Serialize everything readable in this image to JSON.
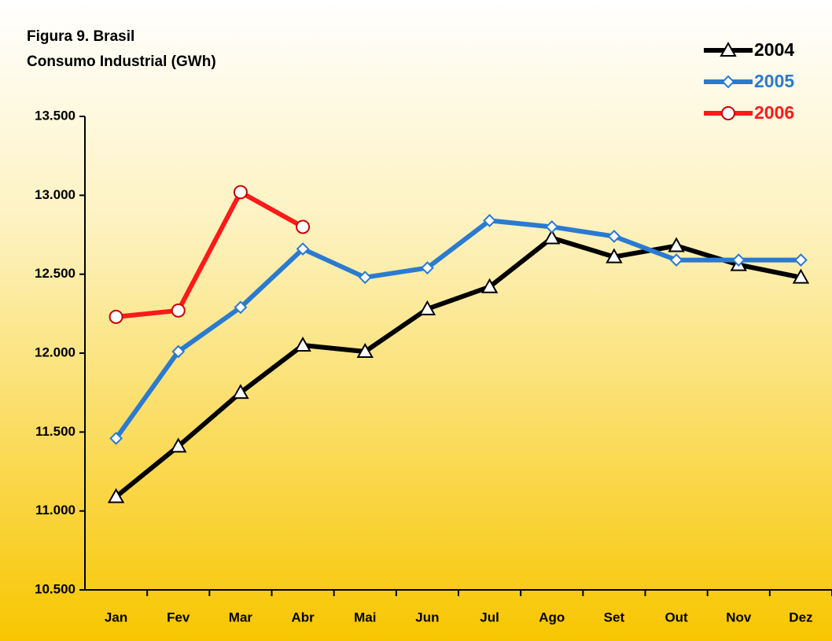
{
  "chart_data": {
    "type": "line",
    "title": "Figura 9. Brasil",
    "subtitle": "Consumo Industrial (GWh)",
    "categories": [
      "Jan",
      "Fev",
      "Mar",
      "Abr",
      "Mai",
      "Jun",
      "Jul",
      "Ago",
      "Set",
      "Out",
      "Nov",
      "Dez"
    ],
    "series": [
      {
        "name": "2004",
        "color": "#000000",
        "marker": "triangle",
        "values": [
          11090,
          11410,
          11750,
          12050,
          12010,
          12280,
          12420,
          12730,
          12610,
          12680,
          12560,
          12480
        ]
      },
      {
        "name": "2005",
        "color": "#2a7ad0",
        "marker": "diamond",
        "values": [
          11460,
          12010,
          12290,
          12660,
          12480,
          12540,
          12840,
          12800,
          12740,
          12590,
          12590,
          12590
        ]
      },
      {
        "name": "2006",
        "color": "#ff1a1a",
        "marker": "circle",
        "values": [
          12230,
          12270,
          13020,
          12800,
          null,
          null,
          null,
          null,
          null,
          null,
          null,
          null
        ]
      }
    ],
    "ylim": [
      10500,
      13500
    ],
    "yticks": [
      {
        "value": 10500,
        "label": "10.500"
      },
      {
        "value": 11000,
        "label": "11.000"
      },
      {
        "value": 11500,
        "label": "11.500"
      },
      {
        "value": 12000,
        "label": "12.000"
      },
      {
        "value": 12500,
        "label": "12.500"
      },
      {
        "value": 13000,
        "label": "13.000"
      },
      {
        "value": 13500,
        "label": "13.500"
      }
    ],
    "grid": false,
    "legend": "top-right"
  }
}
